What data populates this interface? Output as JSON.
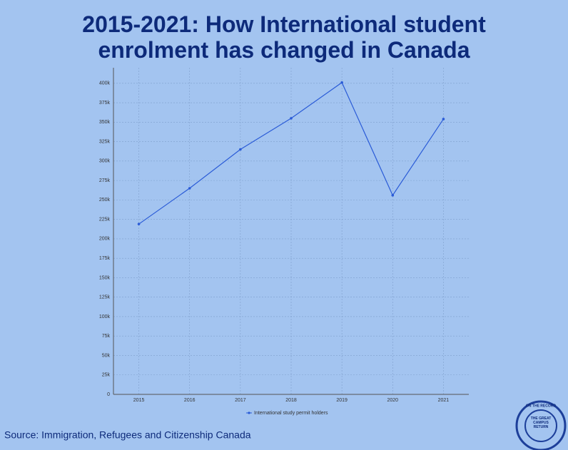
{
  "chart_data": {
    "type": "line",
    "title": "2015-2021: How International student enrolment has changed in Canada",
    "x": [
      2015,
      2016,
      2017,
      2018,
      2019,
      2020,
      2021
    ],
    "series": [
      {
        "name": "International study permit holders",
        "color": "#2a5bd7",
        "values": [
          219000,
          265000,
          315000,
          355000,
          401000,
          256000,
          354000
        ]
      }
    ],
    "xlim": [
      2014.5,
      2021.5
    ],
    "xticks": [
      2015,
      2016,
      2017,
      2018,
      2019,
      2020,
      2021
    ],
    "ylim": [
      0,
      420000
    ],
    "yticks": [
      0,
      {
        "value": 25000,
        "label": "25k"
      },
      {
        "value": 50000,
        "label": "50k"
      },
      {
        "value": 75000,
        "label": "75k"
      },
      {
        "value": 100000,
        "label": "100k"
      },
      {
        "value": 125000,
        "label": "125k"
      },
      {
        "value": 150000,
        "label": "150k"
      },
      {
        "value": 175000,
        "label": "175k"
      },
      {
        "value": 200000,
        "label": "200k"
      },
      {
        "value": 225000,
        "label": "225k"
      },
      {
        "value": 250000,
        "label": "250k"
      },
      {
        "value": 275000,
        "label": "275k"
      },
      {
        "value": 300000,
        "label": "300k"
      },
      {
        "value": 325000,
        "label": "325k"
      },
      {
        "value": 350000,
        "label": "350k"
      },
      {
        "value": 375000,
        "label": "375k"
      },
      {
        "value": 400000,
        "label": "400k"
      }
    ],
    "grid": true,
    "legend": "bottom"
  },
  "source": "Source: Immigration, Refugees and Citizenship Canada",
  "logo": {
    "ring": "ON THE RECORD",
    "center": "THE GREAT CAMPUS RETURN"
  }
}
